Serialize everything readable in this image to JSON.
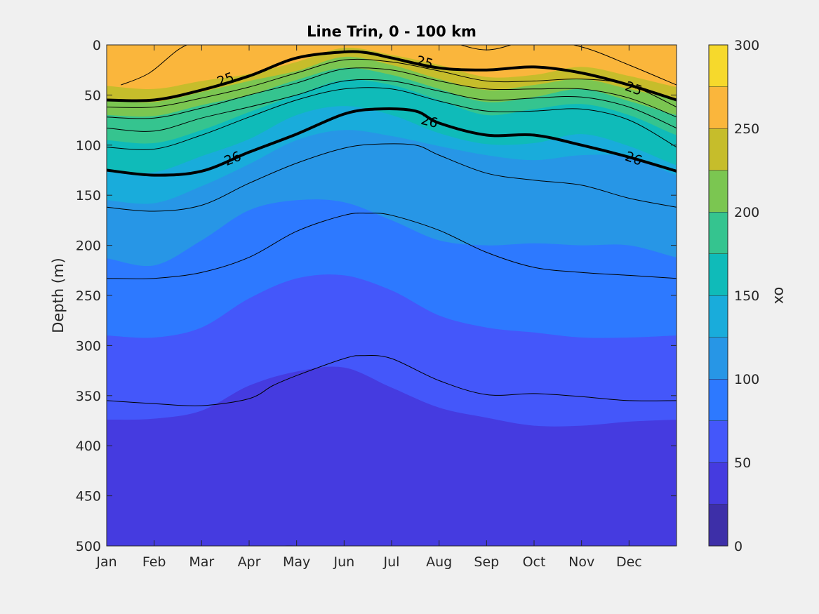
{
  "chart_data": {
    "type": "heatmap",
    "subtype": "filled-contour",
    "title": "Line Trin, 0 - 100 km",
    "ylabel": "Depth (m)",
    "colorbar_label": "ox",
    "x_tick_labels": [
      "Jan",
      "Feb",
      "Mar",
      "Apr",
      "May",
      "Jun",
      "Jul",
      "Aug",
      "Sep",
      "Oct",
      "Nov",
      "Dec"
    ],
    "y_ticks": [
      0,
      50,
      100,
      150,
      200,
      250,
      300,
      350,
      400,
      450,
      500
    ],
    "y_reversed": true,
    "xlim": [
      1,
      13
    ],
    "ylim": [
      0,
      500
    ],
    "colorbar_ticks": [
      0,
      50,
      100,
      150,
      200,
      250,
      300
    ],
    "colorbar_range": [
      0,
      300
    ],
    "levels": [
      {
        "low": 0,
        "high": 25,
        "color": "#3d2fa8"
      },
      {
        "low": 25,
        "high": 50,
        "color": "#453be0"
      },
      {
        "low": 50,
        "high": 75,
        "color": "#4457fa"
      },
      {
        "low": 75,
        "high": 100,
        "color": "#2d79ff"
      },
      {
        "low": 100,
        "high": 125,
        "color": "#2796e6"
      },
      {
        "low": 125,
        "high": 150,
        "color": "#19acdb"
      },
      {
        "low": 150,
        "high": 175,
        "color": "#0fbbb9"
      },
      {
        "low": 175,
        "high": 200,
        "color": "#35c48f"
      },
      {
        "low": 200,
        "high": 225,
        "color": "#7bc651"
      },
      {
        "low": 225,
        "high": 250,
        "color": "#c6bd2b"
      },
      {
        "low": 250,
        "high": 275,
        "color": "#fab63c"
      },
      {
        "low": 275,
        "high": 300,
        "color": "#f6d92c"
      }
    ],
    "band_boundaries": [
      {
        "level": 250,
        "months": [
          1,
          2,
          3,
          4,
          5,
          6,
          7,
          8,
          9,
          10,
          11,
          12,
          13
        ],
        "depth": [
          -20,
          -20,
          -20,
          -20,
          -18,
          2,
          5,
          4,
          -10,
          -15,
          -8,
          -20,
          -20
        ]
      },
      {
        "level": 225,
        "months": [
          1,
          2,
          3,
          4,
          5,
          6,
          7,
          8,
          9,
          10,
          11,
          12,
          13
        ],
        "depth": [
          41,
          44,
          36,
          29,
          17,
          3,
          10,
          20,
          32,
          30,
          22,
          31,
          42
        ]
      },
      {
        "level": 200,
        "months": [
          1,
          2,
          3,
          4,
          5,
          6,
          7,
          8,
          9,
          10,
          11,
          12,
          13
        ],
        "depth": [
          55,
          57,
          47,
          36,
          26,
          12,
          20,
          34,
          45,
          40,
          34,
          44,
          54
        ]
      },
      {
        "level": 175,
        "months": [
          1,
          2,
          3,
          4,
          5,
          6,
          7,
          8,
          9,
          10,
          11,
          12,
          13
        ],
        "depth": [
          70,
          71,
          60,
          50,
          35,
          23,
          30,
          44,
          57,
          52,
          44,
          56,
          70
        ]
      },
      {
        "level": 150,
        "months": [
          1,
          2,
          3,
          4,
          5,
          6,
          7,
          8,
          9,
          10,
          11,
          12,
          13
        ],
        "depth": [
          95,
          98,
          85,
          67,
          50,
          35,
          40,
          55,
          70,
          64,
          59,
          70,
          90
        ]
      },
      {
        "level": 125,
        "months": [
          1,
          2,
          3,
          4,
          5,
          6,
          7,
          8,
          9,
          10,
          11,
          12,
          13
        ],
        "depth": [
          125,
          127,
          111,
          94,
          70,
          61,
          70,
          88,
          99,
          98,
          89,
          101,
          120
        ]
      },
      {
        "level": 100,
        "months": [
          1,
          2,
          3,
          4,
          5,
          6,
          7,
          8,
          9,
          10,
          11,
          12,
          13
        ],
        "depth": [
          155,
          158,
          141,
          119,
          95,
          85,
          91,
          101,
          110,
          115,
          110,
          112,
          130
        ]
      },
      {
        "level": 75,
        "months": [
          1,
          2,
          3,
          4,
          5,
          6,
          7,
          8,
          9,
          10,
          11,
          12,
          13
        ],
        "depth": [
          213,
          220,
          195,
          165,
          155,
          157,
          175,
          195,
          200,
          198,
          200,
          200,
          212
        ]
      },
      {
        "level": 50,
        "months": [
          1,
          2,
          3,
          4,
          5,
          6,
          7,
          8,
          9,
          10,
          11,
          12,
          13
        ],
        "depth": [
          290,
          292,
          282,
          253,
          233,
          230,
          245,
          270,
          282,
          287,
          292,
          292,
          290
        ]
      },
      {
        "level": 25,
        "months": [
          1,
          2,
          3,
          4,
          5,
          6,
          7,
          8,
          9,
          10,
          11,
          12,
          13
        ],
        "depth": [
          374,
          373,
          365,
          340,
          326,
          322,
          342,
          362,
          372,
          380,
          380,
          376,
          374
        ]
      },
      {
        "level": 0,
        "months": [
          1,
          2,
          3,
          4,
          5,
          6,
          7,
          8,
          9,
          10,
          11,
          12,
          13
        ],
        "depth": [
          520,
          520,
          520,
          508,
          500,
          525,
          525,
          525,
          525,
          525,
          525,
          525,
          520
        ]
      }
    ],
    "contours": [
      {
        "months": [
          1.3,
          1.9,
          2.6,
          3.2,
          4,
          5,
          5.9,
          7,
          8,
          9,
          10,
          11,
          12,
          13
        ],
        "depth": [
          40,
          28,
          2,
          -5,
          -5,
          -5,
          -5,
          -5,
          -5,
          5,
          -5,
          2,
          20,
          40
        ]
      },
      {
        "months": [
          1,
          2,
          3,
          4,
          5,
          6,
          6.5,
          7,
          8,
          9,
          10,
          11,
          12,
          13
        ],
        "depth": [
          55,
          55,
          45,
          31,
          13,
          7,
          8,
          13,
          23,
          25,
          22,
          28,
          40,
          55
        ],
        "bold": true,
        "label": "25"
      },
      {
        "months": [
          1,
          2,
          3,
          4,
          5,
          6,
          7,
          8,
          9,
          10,
          11,
          12,
          13
        ],
        "depth": [
          62,
          62,
          53,
          42,
          28,
          15,
          17,
          26,
          36,
          36,
          34,
          40,
          62
        ]
      },
      {
        "months": [
          1,
          2,
          3,
          4,
          5,
          6,
          7,
          8,
          9,
          10,
          11,
          12,
          13
        ],
        "depth": [
          72,
          73,
          63,
          50,
          38,
          24,
          25,
          36,
          44,
          44,
          44,
          53,
          72
        ]
      },
      {
        "months": [
          1,
          2,
          3,
          4,
          5,
          6,
          7,
          8,
          9,
          10,
          11,
          12,
          13
        ],
        "depth": [
          83,
          86,
          73,
          62,
          50,
          36,
          36,
          46,
          55,
          53,
          52,
          62,
          83
        ]
      },
      {
        "months": [
          1,
          2,
          3,
          4,
          5,
          6,
          7,
          8,
          9,
          10,
          11,
          12,
          13
        ],
        "depth": [
          102,
          104,
          90,
          72,
          55,
          44,
          44,
          56,
          66,
          66,
          64,
          75,
          102
        ]
      },
      {
        "months": [
          1,
          2,
          3,
          4,
          5,
          6,
          6.7,
          7.5,
          8,
          9,
          10,
          11,
          12,
          13
        ],
        "depth": [
          125,
          130,
          126,
          107,
          89,
          69,
          64,
          66,
          78,
          90,
          90,
          100,
          112,
          126
        ],
        "bold": true,
        "label": "26"
      },
      {
        "months": [
          1,
          2,
          3,
          4,
          5,
          6,
          6.7,
          7.5,
          8,
          9,
          10,
          11,
          12,
          13
        ],
        "depth": [
          162,
          166,
          160,
          138,
          118,
          103,
          99,
          100,
          110,
          128,
          135,
          140,
          153,
          162
        ]
      },
      {
        "months": [
          1,
          2,
          3,
          4,
          5,
          6,
          6.5,
          7,
          8,
          9,
          10,
          11,
          12,
          13
        ],
        "depth": [
          233,
          233,
          227,
          212,
          186,
          170,
          168,
          170,
          185,
          207,
          222,
          227,
          230,
          233
        ]
      },
      {
        "months": [
          1,
          2,
          3,
          4,
          4.5,
          5,
          6,
          6.4,
          7,
          8,
          9,
          10,
          11,
          12,
          13
        ],
        "depth": [
          355,
          358,
          360,
          353,
          340,
          330,
          313,
          310,
          313,
          335,
          349,
          348,
          351,
          355,
          355
        ]
      }
    ],
    "contour_labels": [
      {
        "text": "25",
        "month": 3.5,
        "depth": 34,
        "angle": -20
      },
      {
        "text": "25",
        "month": 7.7,
        "depth": 17,
        "angle": 15
      },
      {
        "text": "25",
        "month": 12.1,
        "depth": 43,
        "angle": 20
      },
      {
        "text": "26",
        "month": 3.65,
        "depth": 113,
        "angle": -22
      },
      {
        "text": "26",
        "month": 7.8,
        "depth": 76,
        "angle": 14
      },
      {
        "text": "26",
        "month": 12.1,
        "depth": 113,
        "angle": 20
      }
    ]
  }
}
